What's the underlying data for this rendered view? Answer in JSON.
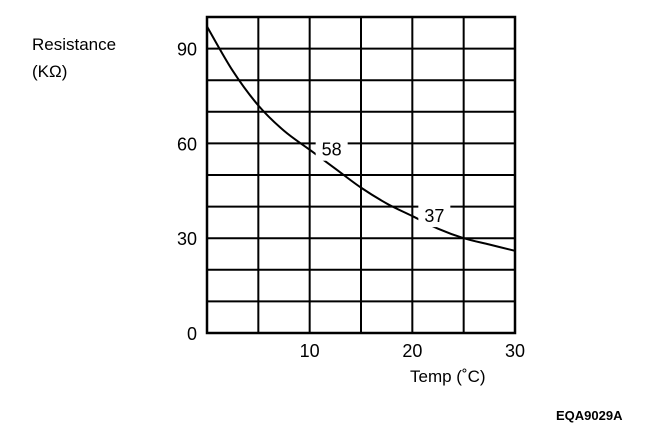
{
  "chart_data": {
    "type": "line",
    "ylabel_line1": "Resistance",
    "ylabel_line2": "(KΩ)",
    "xlabel": "Temp (˚C)",
    "xlim": [
      0,
      30
    ],
    "ylim": [
      0,
      100
    ],
    "x_ticks": [
      10,
      20,
      30
    ],
    "x_tick_labels": [
      "10",
      "20",
      "30"
    ],
    "y_ticks": [
      0,
      30,
      60,
      90
    ],
    "y_tick_labels": [
      "0",
      "30",
      "60",
      "90"
    ],
    "grid": true,
    "x_grid_step": 5,
    "y_grid_step": 10,
    "series": [
      {
        "x": [
          0,
          2.5,
          5,
          7.5,
          10,
          12.5,
          15,
          17.5,
          20,
          22.5,
          25,
          27.5,
          30
        ],
        "y": [
          97,
          83,
          72,
          64,
          58,
          52,
          46,
          41,
          37,
          33,
          30,
          28,
          26
        ],
        "color": "#000000"
      }
    ],
    "annotations": [
      {
        "x": 10,
        "y": 58,
        "text": "58"
      },
      {
        "x": 20,
        "y": 37,
        "text": "37"
      }
    ]
  },
  "figure_code": "EQA9029A"
}
